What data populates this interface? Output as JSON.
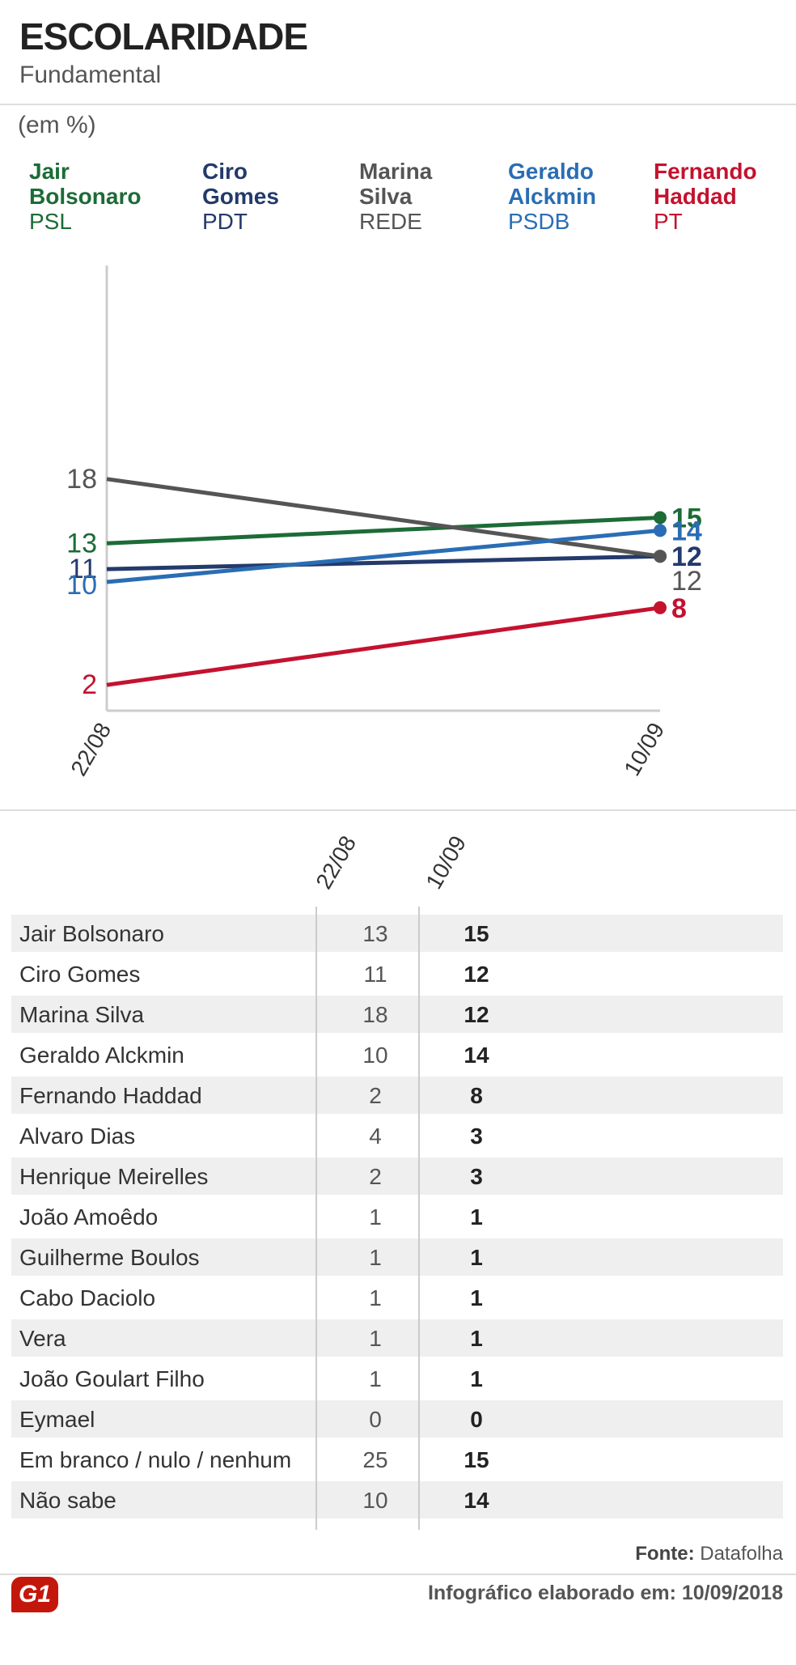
{
  "header": {
    "title": "ESCOLARIDADE",
    "subtitle": "Fundamental",
    "unit": "(em %)"
  },
  "legend": [
    {
      "name1": "Jair",
      "name2": "Bolsonaro",
      "party": "PSL",
      "color": "#1d6b37"
    },
    {
      "name1": "Ciro",
      "name2": "Gomes",
      "party": "PDT",
      "color": "#233a6b"
    },
    {
      "name1": "Marina",
      "name2": "Silva",
      "party": "REDE",
      "color": "#555555"
    },
    {
      "name1": "Geraldo",
      "name2": "Alckmin",
      "party": "PSDB",
      "color": "#2a6db4"
    },
    {
      "name1": "Fernando",
      "name2": "Haddad",
      "party": "PT",
      "color": "#c4122f"
    }
  ],
  "chart_data": {
    "type": "line",
    "x": [
      "22/08",
      "10/09"
    ],
    "series": [
      {
        "name": "Jair Bolsonaro",
        "values": [
          13,
          15
        ],
        "color": "#1d6b37"
      },
      {
        "name": "Ciro Gomes",
        "values": [
          11,
          12
        ],
        "color": "#233a6b"
      },
      {
        "name": "Marina Silva",
        "values": [
          18,
          12
        ],
        "color": "#555555"
      },
      {
        "name": "Geraldo Alckmin",
        "values": [
          10,
          14
        ],
        "color": "#2a6db4"
      },
      {
        "name": "Fernando Haddad",
        "values": [
          2,
          8
        ],
        "color": "#c4122f"
      }
    ],
    "ylim": [
      0,
      35
    ],
    "ylabel": "(em %)",
    "grid": false
  },
  "table": {
    "columns": [
      "22/08",
      "10/09"
    ],
    "rows": [
      {
        "name": "Jair Bolsonaro",
        "v1": "13",
        "v2": "15"
      },
      {
        "name": "Ciro Gomes",
        "v1": "11",
        "v2": "12"
      },
      {
        "name": "Marina Silva",
        "v1": "18",
        "v2": "12"
      },
      {
        "name": "Geraldo Alckmin",
        "v1": "10",
        "v2": "14"
      },
      {
        "name": "Fernando Haddad",
        "v1": "2",
        "v2": "8"
      },
      {
        "name": "Alvaro Dias",
        "v1": "4",
        "v2": "3"
      },
      {
        "name": "Henrique Meirelles",
        "v1": "2",
        "v2": "3"
      },
      {
        "name": "João Amoêdo",
        "v1": "1",
        "v2": "1"
      },
      {
        "name": "Guilherme Boulos",
        "v1": "1",
        "v2": "1"
      },
      {
        "name": "Cabo Daciolo",
        "v1": "1",
        "v2": "1"
      },
      {
        "name": "Vera",
        "v1": "1",
        "v2": "1"
      },
      {
        "name": "João Goulart Filho",
        "v1": "1",
        "v2": "1"
      },
      {
        "name": "Eymael",
        "v1": "0",
        "v2": "0"
      },
      {
        "name": "Em branco / nulo / nenhum",
        "v1": "25",
        "v2": "15"
      },
      {
        "name": "Não sabe",
        "v1": "10",
        "v2": "14"
      }
    ]
  },
  "footer": {
    "source_label": "Fonte:",
    "source_value": "Datafolha",
    "date_text": "Infográfico elaborado em: 10/09/2018",
    "logo_text": "G1"
  }
}
